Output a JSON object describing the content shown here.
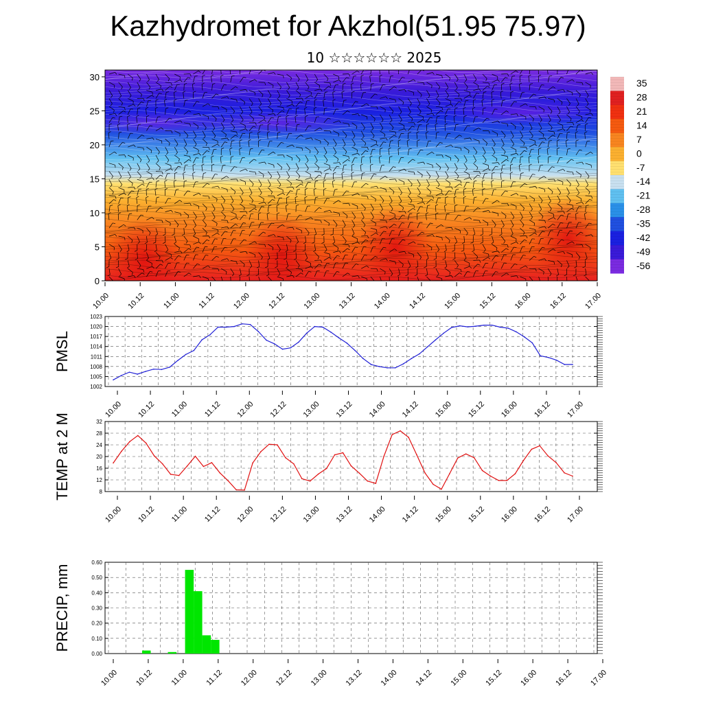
{
  "page": {
    "title": "Kazhydromet for Akzhol(51.95 75.97)",
    "subtitle": "10 ☆☆☆☆☆☆ 2025"
  },
  "colors": {
    "pmsl_line": "#1f1fd6",
    "temp_line": "#e01010",
    "precip_bar": "#00e600",
    "colorbar_low": "#7a2be0",
    "colorbar_high": "#e82020"
  },
  "chart_data": [
    {
      "id": "cross_section",
      "type": "heatmap",
      "title": "",
      "ylabel": "",
      "ylim": [
        0,
        31
      ],
      "yticks": [
        "0",
        "5",
        "10",
        "15",
        "20",
        "25",
        "30"
      ],
      "x_ticks": [
        "10.00",
        "10.12",
        "11.00",
        "11.12",
        "12.00",
        "12.12",
        "13.00",
        "13.12",
        "14.00",
        "14.12",
        "15.00",
        "15.12",
        "16.00",
        "16.12",
        "17.00"
      ],
      "colorbar": {
        "labels": [
          "35",
          "28",
          "21",
          "14",
          "7",
          "0",
          "-7",
          "-14",
          "-21",
          "-28",
          "-35",
          "-42",
          "-49",
          "-56"
        ],
        "colors": [
          "#f2b8b8",
          "#e02020",
          "#f03010",
          "#f55a10",
          "#f88520",
          "#fbb030",
          "#ffe070",
          "#c8e0f0",
          "#60c0f0",
          "#2a90e8",
          "#2050e0",
          "#1a20e0",
          "#3a1ad8",
          "#7a2be0"
        ]
      }
    },
    {
      "id": "pmsl",
      "type": "line",
      "ylabel": "PMSL",
      "ylim": [
        1002,
        1023
      ],
      "yticks": [
        "1002",
        "1005",
        "1008",
        "1011",
        "1014",
        "1017",
        "1020",
        "1023"
      ],
      "x_ticks": [
        "10.00",
        "10.12",
        "11.00",
        "11.12",
        "12.00",
        "12.12",
        "13.00",
        "13.12",
        "14.00",
        "14.12",
        "15.00",
        "15.12",
        "16.00",
        "16.12",
        "17.00"
      ],
      "series": [
        {
          "values": [
            1004,
            1005.3,
            1006.3,
            1005.7,
            1006.5,
            1007.2,
            1007.1,
            1007.8,
            1009.8,
            1011.6,
            1012.8,
            1016,
            1017.5,
            1019.8,
            1019.8,
            1020,
            1020.8,
            1020.6,
            1018.5,
            1015.9,
            1014.8,
            1013.2,
            1013.6,
            1015.3,
            1018,
            1020,
            1019.8,
            1018.3,
            1016.6,
            1015,
            1012.8,
            1010.4,
            1008.6,
            1008,
            1007.6,
            1007.6,
            1008.8,
            1010.4,
            1011.8,
            1013.9,
            1016,
            1018,
            1019.7,
            1020.2,
            1019.9,
            1020.1,
            1020.4,
            1020.4,
            1019.8,
            1019.5,
            1018.4,
            1016.9,
            1015.1,
            1011.2,
            1010.7,
            1009.9,
            1008.6,
            1008.6
          ]
        }
      ]
    },
    {
      "id": "temp",
      "type": "line",
      "ylabel": "TEMP at 2 M",
      "ylim": [
        8,
        32
      ],
      "yticks": [
        "8",
        "12",
        "16",
        "20",
        "24",
        "28",
        "32"
      ],
      "x_ticks": [
        "10.00",
        "10.12",
        "11.00",
        "11.12",
        "12.00",
        "12.12",
        "13.00",
        "13.12",
        "14.00",
        "14.12",
        "15.00",
        "15.12",
        "16.00",
        "16.12",
        "17.00"
      ],
      "series": [
        {
          "values": [
            17.8,
            21.8,
            25.1,
            27.2,
            24.6,
            20.2,
            17.5,
            13.9,
            13.5,
            16.7,
            20.1,
            16.6,
            17.9,
            14.4,
            11.7,
            8.6,
            8.5,
            17.8,
            21.7,
            24.2,
            24,
            19.6,
            17.5,
            12.4,
            11.6,
            14,
            15.9,
            20.6,
            21.3,
            16.8,
            14.3,
            11.6,
            10.8,
            20.1,
            27.5,
            28.8,
            26.6,
            20.6,
            14.4,
            10.5,
            8.8,
            14.1,
            19.5,
            20.9,
            19.6,
            15.2,
            13.3,
            11.8,
            11.8,
            14.1,
            18.6,
            22.5,
            23.7,
            20.2,
            17.9,
            14.4,
            13.3
          ]
        }
      ]
    },
    {
      "id": "precip",
      "type": "bar",
      "ylabel": "PRECIP, mm",
      "ylim": [
        0,
        0.6
      ],
      "yticks": [
        "0.00",
        "0.10",
        "0.20",
        "0.30",
        "0.40",
        "0.50",
        "0.60"
      ],
      "x_ticks": [
        "10.00",
        "10.12",
        "11.00",
        "11.12",
        "12.00",
        "12.12",
        "13.00",
        "13.12",
        "14.00",
        "14.12",
        "15.00",
        "15.12",
        "16.00",
        "16.12",
        "17.00"
      ],
      "bins": 57,
      "values": [
        0,
        0,
        0,
        0,
        0.02,
        0,
        0,
        0.01,
        0,
        0.55,
        0.41,
        0.12,
        0.09,
        0,
        0,
        0,
        0,
        0,
        0,
        0,
        0,
        0,
        0,
        0,
        0,
        0,
        0,
        0,
        0,
        0,
        0,
        0,
        0,
        0,
        0,
        0,
        0,
        0,
        0,
        0,
        0,
        0,
        0,
        0,
        0,
        0,
        0,
        0,
        0,
        0,
        0,
        0,
        0,
        0,
        0,
        0,
        0
      ]
    }
  ]
}
